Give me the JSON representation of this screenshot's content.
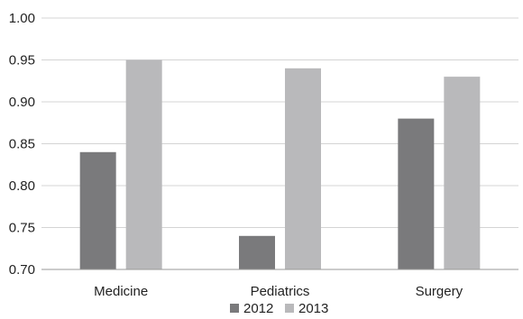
{
  "chart_data": {
    "type": "bar",
    "categories": [
      "Medicine",
      "Pediatrics",
      "Surgery"
    ],
    "series": [
      {
        "name": "2012",
        "values": [
          0.84,
          0.74,
          0.88
        ],
        "color": "#7a7a7c"
      },
      {
        "name": "2013",
        "values": [
          0.95,
          0.94,
          0.93
        ],
        "color": "#b9b9bb"
      }
    ],
    "ylim": [
      0.7,
      1.0
    ],
    "yticks": [
      "0.70",
      "0.75",
      "0.80",
      "0.85",
      "0.90",
      "0.95",
      "1.00"
    ],
    "grid": true,
    "legend": "bottom",
    "xlabel": "",
    "ylabel": "",
    "title": ""
  }
}
